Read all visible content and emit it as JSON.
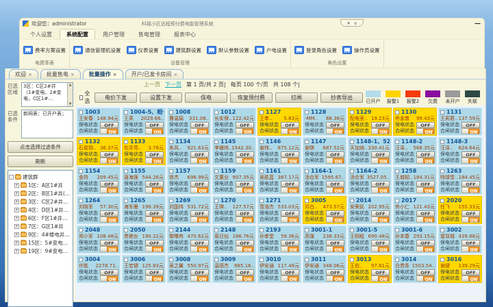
{
  "titlebar": {
    "welcome": "欢迎您：administrator",
    "app_title": "科福小区远程预付费电能管理系统",
    "pill_close": "✕",
    "pill_collapse": "∨",
    "minimize": "—"
  },
  "menu_tabs": [
    {
      "label": "个人设置",
      "active": false
    },
    {
      "label": "系统配置",
      "active": true
    },
    {
      "label": "用户管理",
      "active": false
    },
    {
      "label": "售电管理",
      "active": false
    },
    {
      "label": "报表中心",
      "active": false
    }
  ],
  "ribbon": {
    "groups": [
      {
        "caption": "电费率表",
        "buttons": [
          {
            "label": "费率方案设置"
          }
        ]
      },
      {
        "caption": "设备管理",
        "buttons": [
          {
            "label": "通信管理机设置"
          },
          {
            "label": "仪表设置"
          },
          {
            "label": "建筑群设置"
          },
          {
            "label": "默认参数设置"
          },
          {
            "label": "户电设置"
          }
        ]
      },
      {
        "caption": "角色设置",
        "buttons": [
          {
            "label": "登录角色设置"
          },
          {
            "label": "操作员设置"
          }
        ]
      }
    ]
  },
  "doc_tabs": [
    {
      "label": "欢迎",
      "close": "×",
      "active": false
    },
    {
      "label": "批量售电",
      "close": "×",
      "active": false
    },
    {
      "label": "批量操作",
      "close": "×",
      "active": true
    },
    {
      "label": "开户/已发卡房间",
      "close": "×",
      "active": false
    }
  ],
  "sidebar": {
    "region_label": "已选区域",
    "region_text": "3区：C区2#井（1#变电、2#变电，C区1#…",
    "condition_label": "已选条件",
    "condition_text": "新网表：已开户表；",
    "scroll_up": "▲",
    "scroll_down": "▼",
    "filter_button": "点击选择过滤条件",
    "refresh_button": "刷新",
    "tree_root": "建筑群",
    "tree_items": [
      {
        "label": "1区：A区1#井"
      },
      {
        "label": "2区：B区1#井(B区1#…"
      },
      {
        "label": "3区：C区2#井（1#变…"
      },
      {
        "label": "4区：D区1#井（D区1…"
      },
      {
        "label": "6区：F区1#井（F区1#…"
      },
      {
        "label": "7区：G区1#井"
      },
      {
        "label": "9区：4#楼电井（4#楼…"
      },
      {
        "label": "15区：5#变电站（3#变…"
      },
      {
        "label": "19区：9#变电站（2#…"
      }
    ]
  },
  "toolbar": {
    "prev": "上一页",
    "next": "下一页",
    "page_info": "第 1 页/共 2 页|",
    "per_page": "每页 100 个/页",
    "total": "共 108 个|",
    "select_all": "全选",
    "buttons": [
      {
        "label": "电价下发"
      },
      {
        "label": "设置下发"
      },
      {
        "label": "保电"
      },
      {
        "label": "恢复预付费"
      },
      {
        "label": "拉闸"
      },
      {
        "label": "抄表导出"
      }
    ]
  },
  "legend": [
    {
      "label": "已开户",
      "color": "#b4dcea"
    },
    {
      "label": "报警1",
      "color": "#ffd400"
    },
    {
      "label": "报警2",
      "color": "#f43b0c"
    },
    {
      "label": "欠费",
      "color": "#8a0f9e"
    },
    {
      "label": "未开户",
      "color": "#9a9a9a"
    },
    {
      "label": "失联",
      "color": "#2e4a44"
    }
  ],
  "card_labels": {
    "baodian": "保电状态",
    "hezha": "合闸状态",
    "off": "OFF",
    "on": "ON"
  },
  "rooms": [
    {
      "room": "1003",
      "name": "王安春",
      "balance": "148.94元",
      "alarm": false
    },
    {
      "room": "1004-5、相一",
      "name": "王英",
      "balance": "2029.66..",
      "alarm": false
    },
    {
      "room": "1008",
      "name": "曹温娟",
      "balance": "331.08..",
      "alarm": false
    },
    {
      "room": "1012",
      "name": "长实保..",
      "balance": "122.42元",
      "alarm": false
    },
    {
      "room": "1127",
      "name": "王孝..",
      "balance": "5.83元",
      "alarm": true
    },
    {
      "room": "1128",
      "name": "-MM..",
      "balance": "88.36元",
      "alarm": false
    },
    {
      "room": "1129",
      "name": "配电室..",
      "balance": "19.23元",
      "alarm": true
    },
    {
      "room": "1130",
      "name": "佟金敦",
      "balance": "99.43元",
      "alarm": true
    },
    {
      "room": "1131",
      "name": "王莉君..",
      "balance": "137.59元",
      "alarm": false
    },
    {
      "room": "1132",
      "name": "石俊铜..",
      "balance": "36.37元",
      "alarm": true
    },
    {
      "room": "1133",
      "name": "佐井亮..",
      "balance": "3.78元",
      "alarm": true
    },
    {
      "room": "1134",
      "name": "朱风..",
      "balance": "921.63元",
      "alarm": false
    },
    {
      "room": "1145",
      "name": "李珊伟..",
      "balance": "1542.30..",
      "alarm": false
    },
    {
      "room": "1146",
      "name": "谢伟..",
      "balance": "875.12元",
      "alarm": false
    },
    {
      "room": "1147",
      "name": "谢琪",
      "balance": "687.52元",
      "alarm": false
    },
    {
      "room": "1148-1、522",
      "name": "天加纳..",
      "balance": "330.41元",
      "alarm": false
    },
    {
      "room": "1148-2",
      "name": "汪泽..",
      "balance": "568.35元",
      "alarm": false
    },
    {
      "room": "1148-3",
      "name": "汪泽..",
      "balance": "624.64元",
      "alarm": false
    },
    {
      "room": "1154",
      "name": "金符",
      "balance": "209.45元",
      "alarm": false
    },
    {
      "room": "1155",
      "name": "唐海莲",
      "balance": "544.26元",
      "alarm": false
    },
    {
      "room": "1157",
      "name": "铁杰",
      "balance": "698.99元",
      "alarm": false
    },
    {
      "room": "1159",
      "name": "文惠业",
      "balance": "907.35元",
      "alarm": false
    },
    {
      "room": "1161",
      "name": "吴胜蓝",
      "balance": "367.17元",
      "alarm": false
    },
    {
      "room": "1164-1",
      "name": "汤合军",
      "balance": "1595.67..",
      "alarm": false
    },
    {
      "room": "1164-2",
      "name": "汤合军",
      "balance": "3527.05..",
      "alarm": false
    },
    {
      "room": "1258",
      "name": "王城韧..",
      "balance": "184.31元",
      "alarm": false
    },
    {
      "room": "1263",
      "name": "特球雪..",
      "balance": "184.45元",
      "alarm": false
    },
    {
      "room": "1264",
      "name": "刘晓军",
      "balance": "57.30元",
      "alarm": false
    },
    {
      "room": "1265",
      "name": "海军雁",
      "balance": "199.39元",
      "alarm": false
    },
    {
      "room": "1269",
      "name": "刘国伟",
      "balance": "531.72元",
      "alarm": false
    },
    {
      "room": "1270",
      "name": "王琪..",
      "balance": "127.57元",
      "alarm": false
    },
    {
      "room": "1271",
      "name": "雪浩杰",
      "balance": "533.03元",
      "alarm": false
    },
    {
      "room": "3005",
      "name": "邓白..",
      "balance": "473.57元",
      "alarm": true
    },
    {
      "room": "2014",
      "name": "安荣民",
      "balance": "202.95元",
      "alarm": false
    },
    {
      "room": "2017",
      "name": "佟小仁",
      "balance": "121.43元",
      "alarm": false
    },
    {
      "room": "2020",
      "name": "任飞",
      "balance": "155.33元",
      "alarm": true
    },
    {
      "room": "2048",
      "name": "郑小军",
      "balance": "108.48元",
      "alarm": false
    },
    {
      "room": "2050",
      "name": "贵艳女",
      "balance": "190.22元",
      "alarm": false
    },
    {
      "room": "2144",
      "name": "黎曙冉",
      "balance": "470.62元",
      "alarm": false
    },
    {
      "room": "2148",
      "name": "周日仙",
      "balance": "186.76元",
      "alarm": false
    },
    {
      "room": "2193",
      "name": "孙孝堂",
      "balance": "59.36元",
      "alarm": false
    },
    {
      "room": "3001-1",
      "name": "高强",
      "balance": "238.33元",
      "alarm": false
    },
    {
      "room": "3001-5",
      "name": "王栩程",
      "balance": "690.48元",
      "alarm": false
    },
    {
      "room": "3001-6",
      "name": "孙本春",
      "balance": "293.15元",
      "alarm": false
    },
    {
      "room": "3002",
      "name": "雷双城",
      "balance": "439.88元",
      "alarm": false
    },
    {
      "room": "3004",
      "name": "许胜",
      "balance": "2278.71..",
      "alarm": false
    },
    {
      "room": "3006",
      "name": "王宏键",
      "balance": "125.83元",
      "alarm": false
    },
    {
      "room": "3008",
      "name": "吴之翼",
      "balance": "550.97元",
      "alarm": false
    },
    {
      "room": "3009",
      "name": "温感杰",
      "balance": "885.16..",
      "alarm": false
    },
    {
      "room": "3010",
      "name": "伊安通",
      "balance": "117.49元",
      "alarm": false
    },
    {
      "room": "3011",
      "name": "伊安通",
      "balance": "348.06元",
      "alarm": false
    },
    {
      "room": "3013",
      "name": "王伯..",
      "balance": "97.81元",
      "alarm": true
    },
    {
      "room": "3014",
      "name": "白贵条",
      "balance": "1503.54..",
      "alarm": false
    },
    {
      "room": "3016",
      "name": "谢键",
      "balance": "139.29元",
      "alarm": true
    }
  ]
}
